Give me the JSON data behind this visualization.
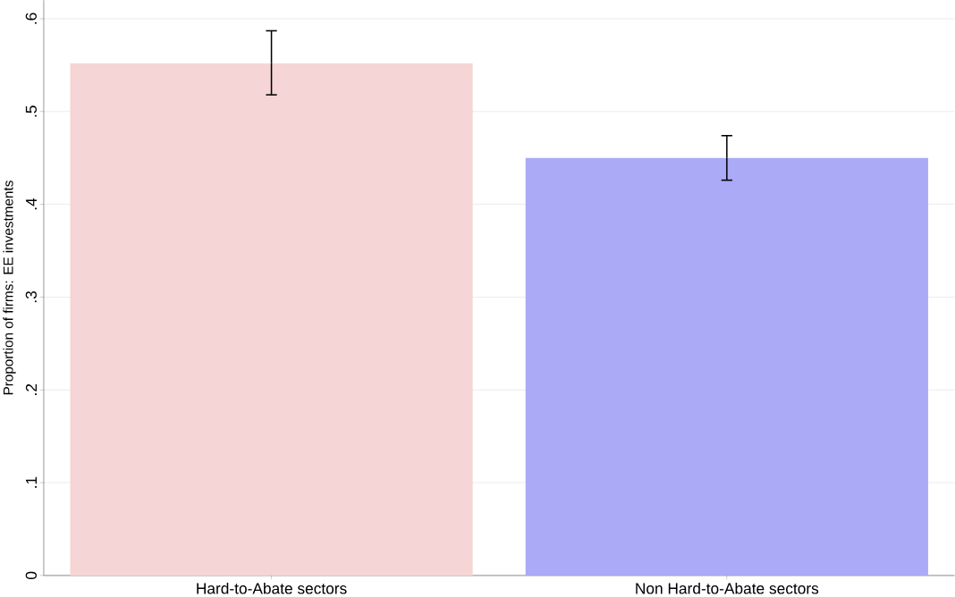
{
  "chart_data": {
    "type": "bar",
    "ylabel": "Proportion of firms: EE investments",
    "categories": [
      "Hard-to-Abate sectors",
      "Non Hard-to-Abate sectors"
    ],
    "values": [
      0.552,
      0.45
    ],
    "colors": [
      "#f5d5d5",
      "#aaaaf7"
    ],
    "errors": [
      [
        0.518,
        0.587
      ],
      [
        0.426,
        0.474
      ]
    ],
    "ylim": [
      0,
      0.62
    ],
    "yticks": [
      0,
      {
        "value": 0.1,
        "label": ".1"
      },
      {
        "value": 0.2,
        "label": ".2"
      },
      {
        "value": 0.3,
        "label": ".3"
      },
      {
        "value": 0.4,
        "label": ".4"
      },
      {
        "value": 0.5,
        "label": ".5"
      },
      {
        "value": 0.6,
        "label": ".6"
      }
    ],
    "grid": "y"
  }
}
